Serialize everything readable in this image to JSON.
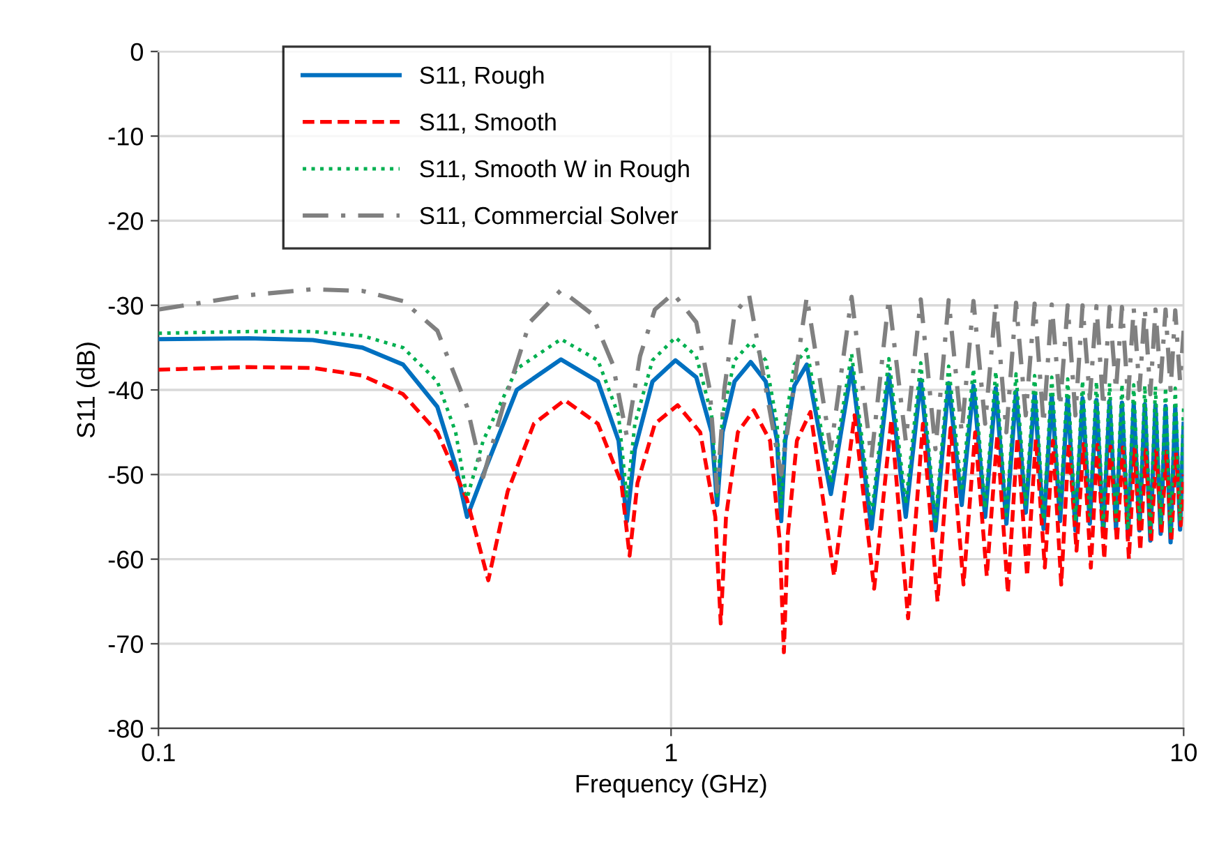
{
  "chart_data": {
    "type": "line",
    "xlabel": "Frequency (GHz)",
    "ylabel": "S11 (dB)",
    "log": "x",
    "xlim": [
      0.1,
      10
    ],
    "xticks": [
      0.1,
      1,
      10
    ],
    "ylim": [
      -80,
      0
    ],
    "yticks": [
      -80,
      -70,
      -60,
      -50,
      -40,
      -30,
      -20,
      -10,
      0
    ],
    "grid": true,
    "legend": "top left",
    "marker": "none",
    "series": [
      {
        "name": "S11, Rough",
        "color": "#0070c0",
        "line_style": "solid",
        "x": [
          0.1,
          0.15,
          0.2,
          0.25,
          0.3,
          0.35,
          0.38,
          0.4,
          0.43,
          0.5,
          0.61,
          0.72,
          0.79,
          0.82,
          0.85,
          0.92,
          1.02,
          1.12,
          1.2,
          1.23,
          1.26,
          1.33,
          1.43,
          1.53,
          1.61,
          1.64,
          1.67,
          1.74,
          1.84,
          2.05,
          2.25,
          2.46,
          2.66,
          2.87,
          3.07,
          3.28,
          3.48,
          3.69,
          3.89,
          4.1,
          4.3,
          4.51,
          4.71,
          4.92,
          5.12,
          5.33,
          5.53,
          5.74,
          5.94,
          6.15,
          6.35,
          6.56,
          6.76,
          6.97,
          7.17,
          7.38,
          7.58,
          7.79,
          7.99,
          8.2,
          8.4,
          8.61,
          8.81,
          9.02,
          9.22,
          9.43,
          9.63,
          9.84,
          10
        ],
        "values": [
          -34,
          -33.9,
          -34.1,
          -35,
          -37,
          -42,
          -49,
          -55,
          -50,
          -40,
          -36.4,
          -39,
          -46,
          -55.5,
          -47,
          -39,
          -36.5,
          -38.5,
          -45,
          -53.6,
          -45,
          -39,
          -36.7,
          -39,
          -46,
          -55.5,
          -46,
          -39.5,
          -37,
          -52.3,
          -37.4,
          -56.4,
          -38.2,
          -55,
          -38.8,
          -56.6,
          -39.2,
          -53.6,
          -39.5,
          -55,
          -39.8,
          -55.8,
          -40.2,
          -54.5,
          -40.4,
          -56.4,
          -40.6,
          -55.5,
          -40.8,
          -56.6,
          -41,
          -55.8,
          -41.2,
          -57,
          -41.3,
          -56.4,
          -41.5,
          -57.5,
          -41.6,
          -56.6,
          -41.7,
          -57.8,
          -41.8,
          -57,
          -41.9,
          -58,
          -42,
          -56.5,
          -44
        ]
      },
      {
        "name": "S11, Smooth",
        "color": "#ff0000",
        "line_style": "dashed",
        "x": [
          0.1,
          0.15,
          0.2,
          0.25,
          0.3,
          0.35,
          0.4,
          0.44,
          0.48,
          0.54,
          0.62,
          0.72,
          0.8,
          0.83,
          0.86,
          0.93,
          1.03,
          1.14,
          1.22,
          1.25,
          1.28,
          1.35,
          1.45,
          1.56,
          1.63,
          1.66,
          1.69,
          1.76,
          1.87,
          2.08,
          2.28,
          2.49,
          2.69,
          2.9,
          3.1,
          3.31,
          3.51,
          3.72,
          3.92,
          4.13,
          4.33,
          4.54,
          4.74,
          4.95,
          5.15,
          5.36,
          5.56,
          5.77,
          5.97,
          6.18,
          6.38,
          6.59,
          6.79,
          7.0,
          7.2,
          7.41,
          7.61,
          7.82,
          8.02,
          8.23,
          8.43,
          8.64,
          8.84,
          9.05,
          9.25,
          9.46,
          9.66,
          9.87,
          10
        ],
        "values": [
          -37.6,
          -37.3,
          -37.4,
          -38.3,
          -40.5,
          -45,
          -53,
          -62.5,
          -52,
          -44,
          -41.2,
          -44,
          -51,
          -59.6,
          -51,
          -44,
          -41.8,
          -45,
          -55,
          -67.6,
          -55,
          -45,
          -42.4,
          -46,
          -58,
          -71,
          -57,
          -46,
          -42.6,
          -62,
          -43,
          -63.5,
          -43.5,
          -67,
          -44,
          -65,
          -44.5,
          -63,
          -45,
          -62,
          -45.3,
          -64,
          -45.6,
          -62,
          -45.8,
          -61,
          -46,
          -63,
          -46.2,
          -59,
          -46.4,
          -61,
          -46.5,
          -60,
          -46.7,
          -58,
          -46.8,
          -60,
          -47,
          -59,
          -47.1,
          -58,
          -47.2,
          -57,
          -47.3,
          -58,
          -47.4,
          -56,
          -50
        ]
      },
      {
        "name": "S11, Smooth W in Rough",
        "color": "#00b050",
        "line_style": "dotted",
        "x": [
          0.1,
          0.15,
          0.2,
          0.25,
          0.3,
          0.35,
          0.38,
          0.4,
          0.43,
          0.5,
          0.61,
          0.72,
          0.79,
          0.82,
          0.85,
          0.92,
          1.02,
          1.12,
          1.2,
          1.23,
          1.26,
          1.33,
          1.43,
          1.53,
          1.61,
          1.64,
          1.67,
          1.74,
          1.84,
          2.05,
          2.25,
          2.46,
          2.66,
          2.87,
          3.07,
          3.28,
          3.48,
          3.69,
          3.89,
          4.1,
          4.3,
          4.51,
          4.71,
          4.92,
          5.12,
          5.33,
          5.53,
          5.74,
          5.94,
          6.15,
          6.35,
          6.56,
          6.76,
          6.97,
          7.17,
          7.38,
          7.58,
          7.79,
          7.99,
          8.2,
          8.4,
          8.61,
          8.81,
          9.02,
          9.22,
          9.43,
          9.63,
          9.84,
          10
        ],
        "values": [
          -33.3,
          -33.1,
          -33.1,
          -33.6,
          -35,
          -39,
          -45,
          -52.8,
          -46,
          -37.5,
          -34,
          -36.5,
          -43,
          -52.8,
          -44,
          -36.5,
          -33.8,
          -36,
          -43,
          -52.5,
          -43,
          -36.5,
          -34.4,
          -36.5,
          -44,
          -54,
          -44,
          -37,
          -35.2,
          -51,
          -35.7,
          -55,
          -36.3,
          -53.5,
          -36.8,
          -55.5,
          -37.2,
          -52,
          -37.5,
          -54,
          -37.8,
          -54.8,
          -38.1,
          -53.5,
          -38.3,
          -55.4,
          -38.5,
          -54.5,
          -38.7,
          -55.6,
          -38.9,
          -54.8,
          -39,
          -56,
          -39.2,
          -55.4,
          -39.3,
          -56.5,
          -39.4,
          -55.6,
          -39.5,
          -56.8,
          -39.6,
          -56,
          -39.7,
          -57,
          -39.8,
          -55.5,
          -42
        ]
      },
      {
        "name": "S11, Commercial Solver",
        "color": "#808080",
        "line_style": "dashdot",
        "x": [
          0.1,
          0.15,
          0.2,
          0.25,
          0.3,
          0.35,
          0.4,
          0.43,
          0.47,
          0.53,
          0.61,
          0.7,
          0.77,
          0.82,
          0.87,
          0.93,
          1.01,
          1.12,
          1.19,
          1.23,
          1.27,
          1.33,
          1.42,
          1.64,
          1.84,
          2.05,
          2.25,
          2.46,
          2.66,
          2.87,
          3.07,
          3.28,
          3.48,
          3.69,
          3.89,
          4.1,
          4.3,
          4.51,
          4.71,
          4.92,
          5.12,
          5.33,
          5.53,
          5.74,
          5.94,
          6.15,
          6.35,
          6.56,
          6.76,
          6.97,
          7.17,
          7.38,
          7.58,
          7.79,
          7.99,
          8.2,
          8.4,
          8.61,
          8.81,
          9.02,
          9.22,
          9.43,
          9.63,
          9.84,
          10
        ],
        "values": [
          -30.5,
          -28.8,
          -28.1,
          -28.3,
          -29.5,
          -33,
          -42,
          -50.3,
          -42,
          -32,
          -28.2,
          -31,
          -37,
          -45.5,
          -36,
          -30.5,
          -28.6,
          -32,
          -40,
          -52,
          -40,
          -31,
          -28.8,
          -50,
          -29,
          -47,
          -29,
          -48,
          -29.2,
          -46,
          -29.3,
          -47,
          -29.4,
          -45,
          -29.5,
          -44,
          -29.6,
          -45,
          -29.7,
          -43,
          -29.8,
          -44,
          -29.9,
          -42,
          -30,
          -43,
          -30,
          -41,
          -30.1,
          -42,
          -30.2,
          -40,
          -30.2,
          -41,
          -30.3,
          -40,
          -30.4,
          -40.5,
          -30.5,
          -39,
          -30.5,
          -40,
          -30.6,
          -39,
          -33
        ]
      }
    ]
  }
}
